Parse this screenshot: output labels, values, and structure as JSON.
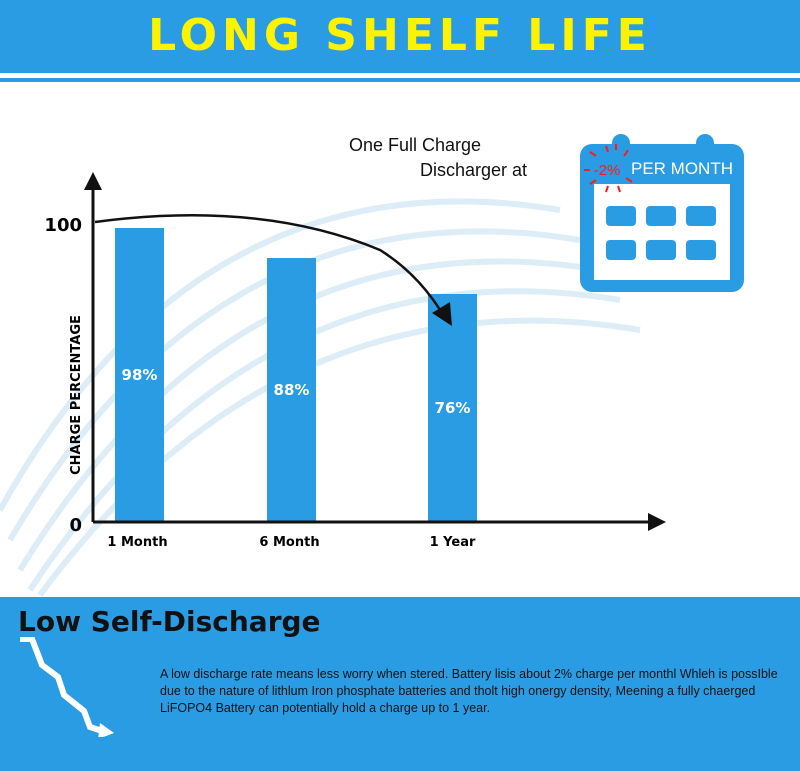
{
  "header": {
    "title": "LONG SHELF LIFE"
  },
  "annotation": {
    "line1": "One Full Charge",
    "line2": "Discharger at"
  },
  "calendar": {
    "rate": "-2%",
    "label": "PER MONTH"
  },
  "colors": {
    "accent": "#2a9ce4",
    "title": "#fff200",
    "rate": "#ff1a1a"
  },
  "chart_data": {
    "type": "bar",
    "title": "",
    "xlabel": "",
    "ylabel": "CHARGE PERCENTAGE",
    "ylim": [
      0,
      100
    ],
    "yticks": [
      "0",
      "100"
    ],
    "categories": [
      "1 Month",
      "6 Month",
      "1 Year"
    ],
    "values": [
      98,
      88,
      76
    ],
    "data_labels": [
      "98%",
      "88%",
      "76%"
    ],
    "grid": false
  },
  "footer": {
    "title": "Low Self-Discharge",
    "description": "A low discharge rate means less worry when stered. Battery lisis about 2% charge per monthl Whleh is possIble due to the nature of lithlum Iron phosphate batteries and tholt high onergy density, Meening a fully chaerged LiFOPO4 Battery can potentially hold a charge up to 1 year."
  }
}
